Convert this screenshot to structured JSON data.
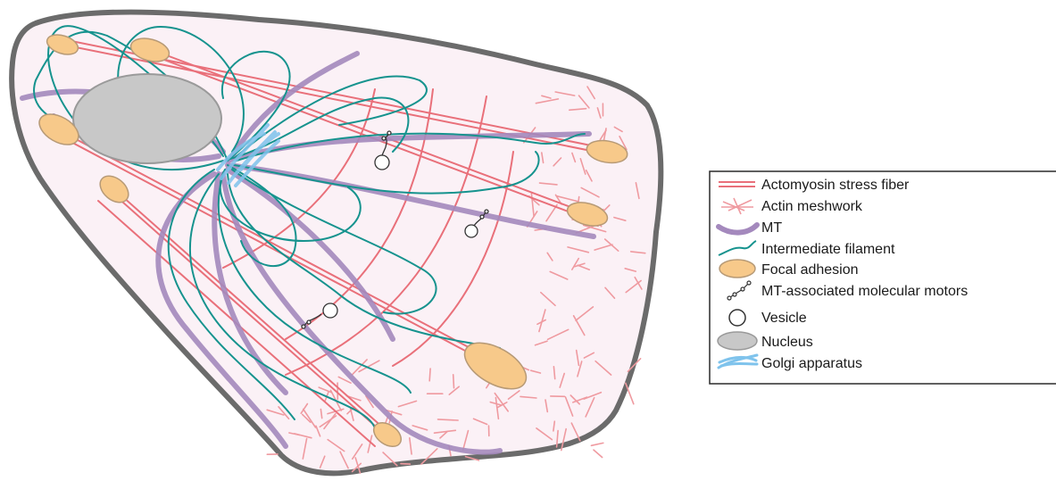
{
  "legend": {
    "items": [
      {
        "key": "stress-fiber",
        "label": "Actomyosin stress fiber"
      },
      {
        "key": "actin-meshwork",
        "label": "Actin meshwork"
      },
      {
        "key": "mt",
        "label": "MT"
      },
      {
        "key": "intermediate-filament",
        "label": "Intermediate filament"
      },
      {
        "key": "focal-adhesion",
        "label": "Focal adhesion"
      },
      {
        "key": "motor",
        "label": "MT-associated molecular motors"
      },
      {
        "key": "vesicle",
        "label": "Vesicle"
      },
      {
        "key": "nucleus",
        "label": "Nucleus"
      },
      {
        "key": "golgi",
        "label": "Golgi apparatus"
      }
    ]
  },
  "colors": {
    "membrane": "#6b6b6b",
    "cytoplasm": "#fbf1f6",
    "stress_fiber": "#e9707a",
    "actin_meshwork": "#ef9aa0",
    "mt": "#a489bd",
    "intermediate_filament": "#16938e",
    "focal_adhesion_fill": "#f7c98a",
    "focal_adhesion_stroke": "#b79a76",
    "nucleus_fill": "#c8c8c8",
    "nucleus_stroke": "#9a9a9a",
    "golgi": "#7fc3ec",
    "motor": "#333333"
  }
}
